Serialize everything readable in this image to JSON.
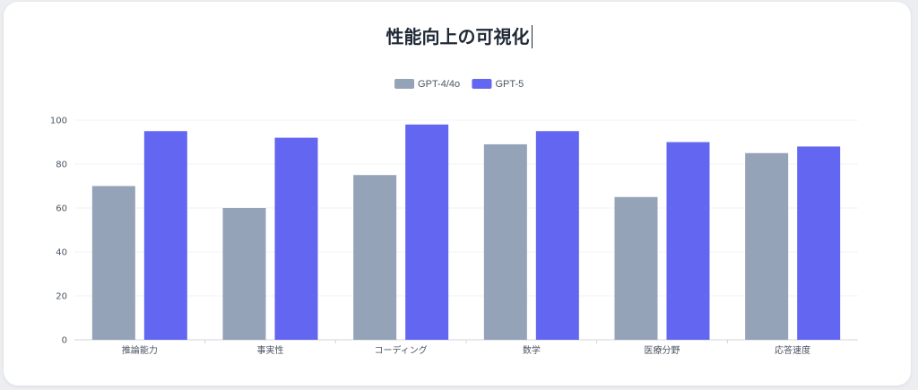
{
  "title": "性能向上の可視化",
  "chart_data": {
    "type": "bar",
    "categories": [
      "推論能力",
      "事実性",
      "コーディング",
      "数学",
      "医療分野",
      "応答速度"
    ],
    "series": [
      {
        "name": "GPT-4/4o",
        "values": [
          70,
          60,
          75,
          89,
          65,
          85
        ],
        "color": "#94a3b8"
      },
      {
        "name": "GPT-5",
        "values": [
          95,
          92,
          98,
          95,
          90,
          88
        ],
        "color": "#6366f1"
      }
    ],
    "ylim": [
      0,
      100
    ],
    "yticks": [
      0,
      20,
      40,
      60,
      80,
      100
    ],
    "legend_position": "top-center",
    "grid": true
  }
}
